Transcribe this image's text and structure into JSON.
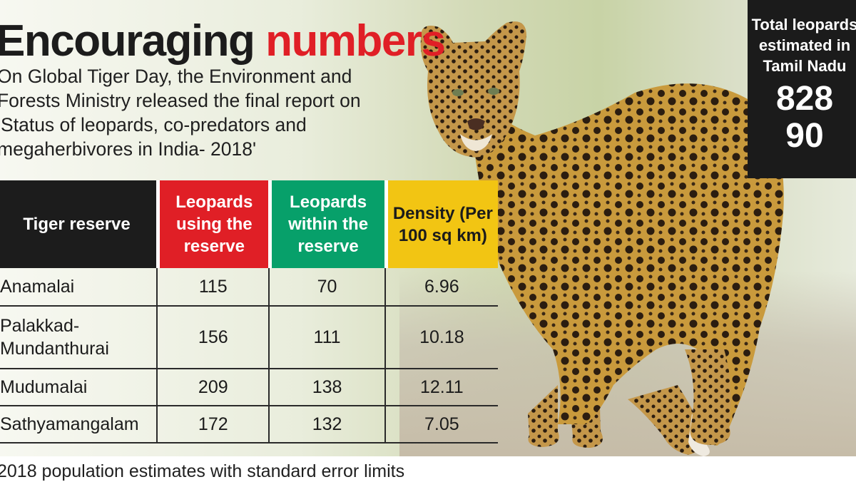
{
  "headline": {
    "word1": "Encouraging",
    "word2": "numbers"
  },
  "subhead": "On Global Tiger Day, the Environment and Forests Ministry released the final report on 'Status of leopards, co-predators and megaherbivores in India- 2018'",
  "stat_box": {
    "label": "Total leopards estimated in Tamil Nadu",
    "value_low": "828",
    "value_high": "90"
  },
  "colors": {
    "red": "#e01f26",
    "green": "#07a06a",
    "yellow": "#f2c513",
    "dark": "#1c1c1c"
  },
  "footnote": "2018 population estimates with standard error limits",
  "chart_data": {
    "type": "table",
    "columns": [
      "Tiger reserve",
      "Leopards using the reserve",
      "Leopards within the reserve",
      "Density (Per 100 sq km)"
    ],
    "rows": [
      {
        "reserve": "Anamalai",
        "using": "115",
        "within": "70",
        "density": "6.96"
      },
      {
        "reserve": "Palakkad-Mundanthurai",
        "using": "156",
        "within": "111",
        "density": "10.18"
      },
      {
        "reserve": "Mudumalai",
        "using": "209",
        "within": "138",
        "density": "12.11"
      },
      {
        "reserve": "Sathyamangalam",
        "using": "172",
        "within": "132",
        "density": "7.05"
      }
    ]
  }
}
